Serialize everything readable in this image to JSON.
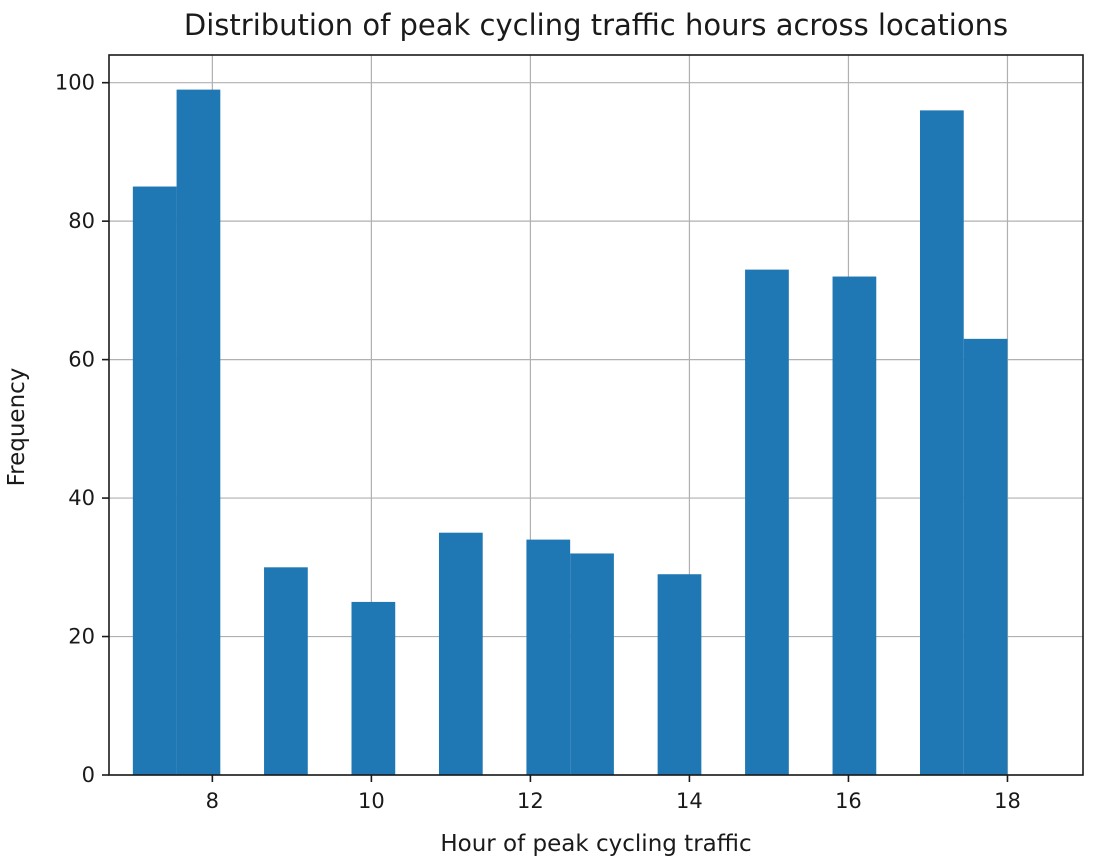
{
  "chart_data": {
    "type": "bar",
    "title": "Distribution of peak cycling traffic hours across locations",
    "xlabel": "Hour of peak cycling traffic",
    "ylabel": "Frequency",
    "bin_edges": [
      7,
      7.55,
      8.1,
      8.65,
      9.2,
      9.75,
      10.3,
      10.85,
      11.4,
      11.95,
      12.5,
      13.05,
      13.6,
      14.15,
      14.7,
      15.25,
      15.8,
      16.35,
      16.9,
      17.45,
      18
    ],
    "values": [
      85,
      99,
      0,
      30,
      0,
      25,
      0,
      35,
      0,
      34,
      32,
      0,
      29,
      0,
      73,
      0,
      72,
      0,
      96,
      63
    ],
    "xlim": [
      6.7,
      18.95
    ],
    "ylim": [
      0,
      104
    ],
    "xticks": [
      8,
      10,
      12,
      14,
      16,
      18
    ],
    "yticks": [
      0,
      20,
      40,
      60,
      80,
      100
    ],
    "grid": true,
    "bar_color": "#1f77b4"
  }
}
